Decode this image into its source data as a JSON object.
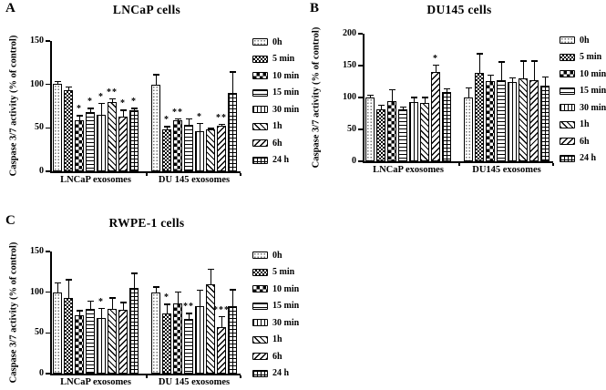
{
  "colors": {
    "ink": "#000000",
    "paper": "#ffffff"
  },
  "chart_data": [
    {
      "type": "bar",
      "panel_letter": "A",
      "title": "LNCaP cells",
      "ylabel": "Caspase 3/7 activity (% of control)",
      "ylim": [
        0,
        150
      ],
      "yticks": [
        0,
        50,
        100,
        150
      ],
      "categories": [
        "LNCaP exosomes",
        "DU 145 exosomes"
      ],
      "legend_position": "right",
      "grid": false,
      "series": [
        {
          "name": "0h",
          "pattern": "dots",
          "values": [
            101,
            100
          ],
          "errors": [
            3,
            12
          ],
          "significance": [
            "",
            ""
          ]
        },
        {
          "name": "5 min",
          "pattern": "dense-crosshatch",
          "values": [
            93,
            48
          ],
          "errors": [
            5,
            4
          ],
          "significance": [
            "",
            "*"
          ]
        },
        {
          "name": "10 min",
          "pattern": "checkerboard",
          "values": [
            59,
            59
          ],
          "errors": [
            6,
            2
          ],
          "significance": [
            "*",
            "**"
          ]
        },
        {
          "name": "15 min",
          "pattern": "horizontal-lines",
          "values": [
            68,
            53
          ],
          "errors": [
            5,
            8
          ],
          "significance": [
            "*",
            ""
          ]
        },
        {
          "name": "30 min",
          "pattern": "vertical-lines",
          "values": [
            65,
            46
          ],
          "errors": [
            14,
            10
          ],
          "significance": [
            "*",
            "*"
          ]
        },
        {
          "name": "1h",
          "pattern": "diagonal-up",
          "values": [
            80,
            48
          ],
          "errors": [
            4,
            2
          ],
          "significance": [
            "**",
            ""
          ]
        },
        {
          "name": "6h",
          "pattern": "diagonal-down",
          "values": [
            63,
            52
          ],
          "errors": [
            8,
            3
          ],
          "significance": [
            "*",
            "**"
          ]
        },
        {
          "name": "24 h",
          "pattern": "grid",
          "values": [
            70,
            90
          ],
          "errors": [
            3,
            25
          ],
          "significance": [
            "*",
            ""
          ]
        }
      ]
    },
    {
      "type": "bar",
      "panel_letter": "B",
      "title": "DU145 cells",
      "ylabel": "Caspase 3/7 activity (% of control)",
      "ylim": [
        0,
        200
      ],
      "yticks": [
        0,
        50,
        100,
        150,
        200
      ],
      "categories": [
        "LNCaP exosomes",
        "DU145 exosomes"
      ],
      "legend_position": "right",
      "grid": false,
      "series": [
        {
          "name": "0h",
          "pattern": "dots",
          "values": [
            100,
            100
          ],
          "errors": [
            5,
            16
          ],
          "significance": [
            "",
            ""
          ]
        },
        {
          "name": "5 min",
          "pattern": "dense-crosshatch",
          "values": [
            81,
            139
          ],
          "errors": [
            8,
            31
          ],
          "significance": [
            "",
            ""
          ]
        },
        {
          "name": "10 min",
          "pattern": "checkerboard",
          "values": [
            94,
            126
          ],
          "errors": [
            19,
            10
          ],
          "significance": [
            "",
            ""
          ]
        },
        {
          "name": "15 min",
          "pattern": "horizontal-lines",
          "values": [
            82,
            127
          ],
          "errors": [
            4,
            30
          ],
          "significance": [
            "",
            ""
          ]
        },
        {
          "name": "30 min",
          "pattern": "vertical-lines",
          "values": [
            93,
            124
          ],
          "errors": [
            8,
            8
          ],
          "significance": [
            "",
            ""
          ]
        },
        {
          "name": "1h",
          "pattern": "diagonal-up",
          "values": [
            92,
            130
          ],
          "errors": [
            9,
            28
          ],
          "significance": [
            "",
            ""
          ]
        },
        {
          "name": "6h",
          "pattern": "diagonal-down",
          "values": [
            140,
            127
          ],
          "errors": [
            12,
            31
          ],
          "significance": [
            "*",
            ""
          ]
        },
        {
          "name": "24 h",
          "pattern": "grid",
          "values": [
            108,
            118
          ],
          "errors": [
            7,
            15
          ],
          "significance": [
            "",
            ""
          ]
        }
      ]
    },
    {
      "type": "bar",
      "panel_letter": "C",
      "title": "RWPE-1 cells",
      "ylabel": "Caspase 3/7 activity (% of control)",
      "ylim": [
        0,
        150
      ],
      "yticks": [
        0,
        50,
        100,
        150
      ],
      "categories": [
        "LNCaP exosomes",
        "DU 145 exosomes"
      ],
      "legend_position": "right",
      "grid": false,
      "series": [
        {
          "name": "0h",
          "pattern": "dots",
          "values": [
            100,
            100
          ],
          "errors": [
            12,
            7
          ],
          "significance": [
            "",
            ""
          ]
        },
        {
          "name": "5 min",
          "pattern": "dense-crosshatch",
          "values": [
            93,
            74
          ],
          "errors": [
            23,
            12
          ],
          "significance": [
            "",
            "*"
          ]
        },
        {
          "name": "10 min",
          "pattern": "checkerboard",
          "values": [
            72,
            86
          ],
          "errors": [
            6,
            15
          ],
          "significance": [
            "",
            ""
          ]
        },
        {
          "name": "15 min",
          "pattern": "horizontal-lines",
          "values": [
            80,
            67
          ],
          "errors": [
            10,
            8
          ],
          "significance": [
            "",
            "**"
          ]
        },
        {
          "name": "30 min",
          "pattern": "vertical-lines",
          "values": [
            68,
            83
          ],
          "errors": [
            13,
            20
          ],
          "significance": [
            "*",
            ""
          ]
        },
        {
          "name": "1h",
          "pattern": "diagonal-up",
          "values": [
            79,
            110
          ],
          "errors": [
            15,
            19
          ],
          "significance": [
            "",
            ""
          ]
        },
        {
          "name": "6h",
          "pattern": "diagonal-down",
          "values": [
            78,
            57
          ],
          "errors": [
            10,
            14
          ],
          "significance": [
            "",
            "***"
          ]
        },
        {
          "name": "24 h",
          "pattern": "grid",
          "values": [
            105,
            83
          ],
          "errors": [
            19,
            21
          ],
          "significance": [
            "",
            ""
          ]
        }
      ]
    }
  ]
}
